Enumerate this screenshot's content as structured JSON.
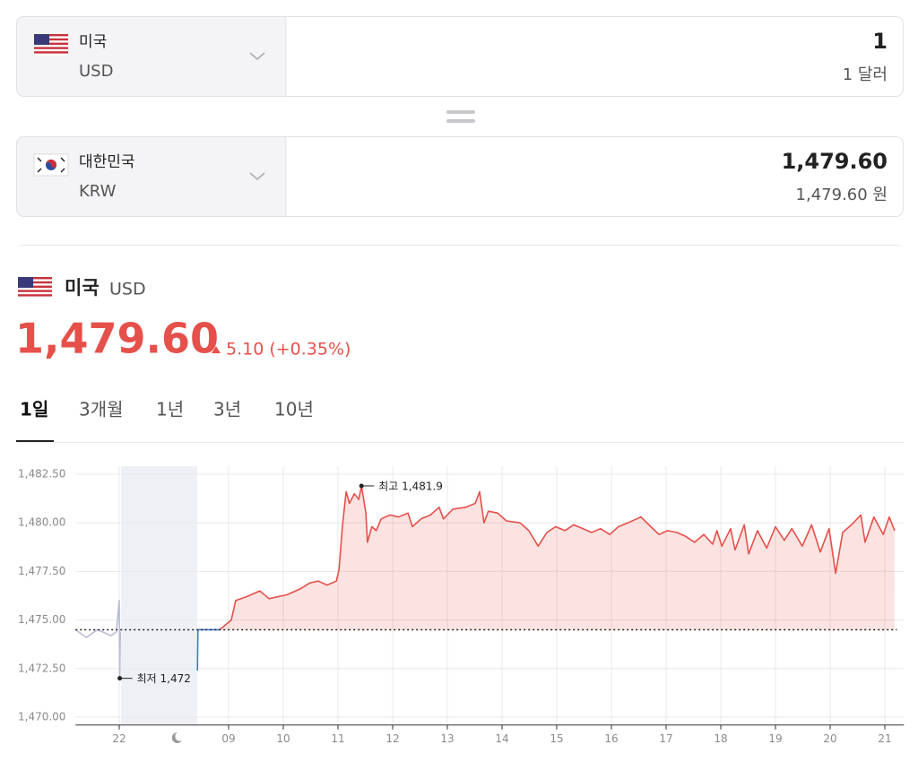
{
  "converter": [
    {
      "country": "미국",
      "code": "USD",
      "amount": "1",
      "amount_text": "1 달러"
    },
    {
      "country": "대한민국",
      "code": "KRW",
      "amount": "1,479.60",
      "amount_text": "1,479.60 원"
    }
  ],
  "rate": {
    "country": "미국",
    "code": "USD",
    "value": "1,479.60",
    "change": "5.10 (+0.35%)"
  },
  "tabs": [
    "1일",
    "3개월",
    "1년",
    "3년",
    "10년"
  ],
  "active_tab": 0,
  "chart_data": {
    "type": "line",
    "xlim": [
      -0.8,
      14.35
    ],
    "xticks": [
      {
        "value": 0,
        "label": "22"
      },
      {
        "value": 2,
        "label": "09"
      },
      {
        "value": 3,
        "label": "10"
      },
      {
        "value": 4,
        "label": "11"
      },
      {
        "value": 5,
        "label": "12"
      },
      {
        "value": 6,
        "label": "13"
      },
      {
        "value": 7,
        "label": "14"
      },
      {
        "value": 8,
        "label": "15"
      },
      {
        "value": 9,
        "label": "16"
      },
      {
        "value": 10,
        "label": "17"
      },
      {
        "value": 11,
        "label": "18"
      },
      {
        "value": 12,
        "label": "19"
      },
      {
        "value": 13,
        "label": "20"
      },
      {
        "value": 14,
        "label": "21"
      }
    ],
    "ylim": [
      1469.6,
      1482.9
    ],
    "yticks": [
      {
        "value": 1470,
        "label": "1,470.00"
      },
      {
        "value": 1472.5,
        "label": "1,472.50"
      },
      {
        "value": 1475,
        "label": "1,475.00"
      },
      {
        "value": 1477.5,
        "label": "1,477.50"
      },
      {
        "value": 1480,
        "label": "1,480.00"
      },
      {
        "value": 1482.5,
        "label": "1,482.50"
      }
    ],
    "grid": true,
    "reference_line": 1474.5,
    "series": [
      {
        "color": "#b9bad6",
        "area": false,
        "x": [
          -0.8,
          -0.6,
          -0.4,
          -0.15,
          -0.05,
          0,
          0.01,
          0.02
        ],
        "values": [
          1474.5,
          1474.1,
          1474.5,
          1474.2,
          1474.4,
          1476.0,
          1472.0,
          1474.4
        ]
      },
      {
        "color": "#3b7dd8",
        "area": false,
        "x": [
          1.43,
          1.44,
          1.84
        ],
        "values": [
          1472.4,
          1474.5,
          1474.5
        ]
      },
      {
        "color": "#e5504a",
        "area": true,
        "x": [
          1.84,
          2.05,
          2.13,
          2.33,
          2.57,
          2.74,
          3.07,
          3.31,
          3.48,
          3.64,
          3.8,
          3.97,
          4.02,
          4.08,
          4.15,
          4.21,
          4.3,
          4.38,
          4.43,
          4.51,
          4.54,
          4.62,
          4.7,
          4.79,
          4.95,
          5.11,
          5.28,
          5.36,
          5.52,
          5.69,
          5.85,
          5.93,
          6.1,
          6.34,
          6.51,
          6.59,
          6.67,
          6.75,
          6.92,
          7.08,
          7.33,
          7.49,
          7.66,
          7.82,
          7.98,
          8.15,
          8.31,
          8.48,
          8.64,
          8.8,
          8.97,
          9.13,
          9.3,
          9.54,
          9.72,
          9.87,
          10.03,
          10.2,
          10.36,
          10.52,
          10.69,
          10.85,
          10.93,
          11.02,
          11.18,
          11.26,
          11.43,
          11.51,
          11.67,
          11.84,
          12.0,
          12.16,
          12.3,
          12.49,
          12.66,
          12.82,
          12.98,
          13.1,
          13.23,
          13.39,
          13.56,
          13.64,
          13.8,
          13.97,
          14.08,
          14.18
        ],
        "values": [
          1474.5,
          1475.0,
          1476.0,
          1476.2,
          1476.5,
          1476.1,
          1476.3,
          1476.6,
          1476.9,
          1477.0,
          1476.8,
          1477.0,
          1477.6,
          1479.8,
          1481.6,
          1481.0,
          1481.5,
          1481.2,
          1481.9,
          1480.5,
          1479.0,
          1479.8,
          1479.6,
          1480.2,
          1480.4,
          1480.3,
          1480.5,
          1479.8,
          1480.2,
          1480.4,
          1480.8,
          1480.2,
          1480.7,
          1480.8,
          1481.0,
          1481.6,
          1480.0,
          1480.6,
          1480.5,
          1480.1,
          1480.0,
          1479.6,
          1478.8,
          1479.5,
          1479.8,
          1479.6,
          1479.9,
          1479.7,
          1479.5,
          1479.7,
          1479.4,
          1479.8,
          1480.0,
          1480.3,
          1479.8,
          1479.4,
          1479.6,
          1479.5,
          1479.3,
          1479.0,
          1479.4,
          1478.9,
          1479.6,
          1478.8,
          1479.7,
          1478.6,
          1479.9,
          1478.4,
          1479.6,
          1478.7,
          1479.8,
          1479.1,
          1479.7,
          1478.8,
          1479.9,
          1478.5,
          1479.7,
          1477.4,
          1479.5,
          1479.9,
          1480.4,
          1479.0,
          1480.3,
          1479.4,
          1480.3,
          1479.6
        ]
      }
    ],
    "annotations": [
      {
        "label": "최고 1,481.9",
        "x": 4.43,
        "value": 1481.9
      },
      {
        "label": "최저 1,472",
        "x": 0.01,
        "value": 1472.0
      }
    ]
  }
}
